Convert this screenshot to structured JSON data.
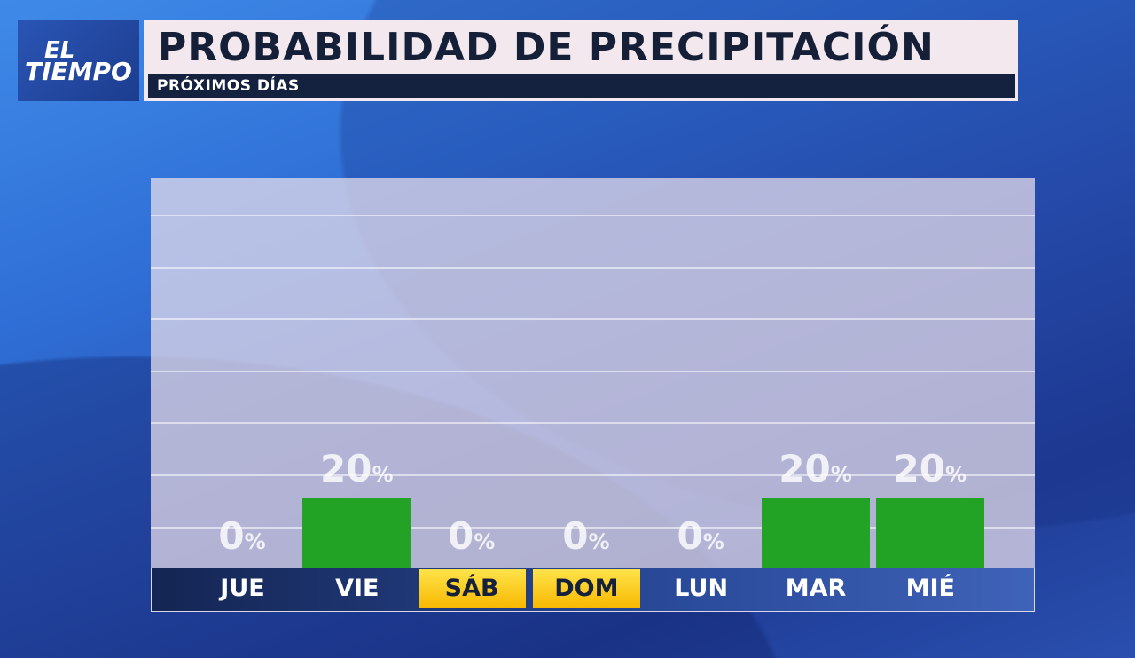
{
  "logo": {
    "line1": "EL",
    "line2": "TIEMPO"
  },
  "header": {
    "title": "PROBABILIDAD DE PRECIPITACIÓN",
    "subtitle": "PRÓXIMOS DÍAS"
  },
  "colors": {
    "bar": "#23a325",
    "weekend_label": "#ffd21f",
    "title_bg": "#f3e8ee",
    "axis_band": "#142552"
  },
  "chart_data": {
    "type": "bar",
    "categories": [
      "JUE",
      "VIE",
      "SÁB",
      "DOM",
      "LUN",
      "MAR",
      "MIÉ"
    ],
    "values": [
      0,
      20,
      0,
      0,
      0,
      20,
      20
    ],
    "value_labels": [
      "0",
      "20",
      "0",
      "0",
      "0",
      "20",
      "20"
    ],
    "unit": "%",
    "weekend": [
      false,
      false,
      true,
      true,
      false,
      false,
      false
    ],
    "ylim": [
      0,
      100
    ],
    "grid": true
  }
}
